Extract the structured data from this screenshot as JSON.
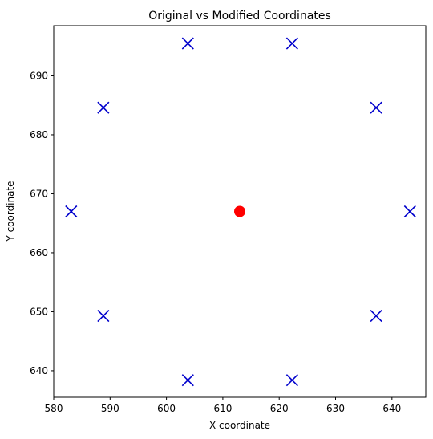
{
  "chart_data": {
    "type": "scatter",
    "title": "Original vs Modified Coordinates",
    "xlabel": "X coordinate",
    "ylabel": "Y coordinate",
    "xlim": [
      580,
      646
    ],
    "ylim": [
      635.5,
      698.5
    ],
    "xticks": [
      580,
      590,
      600,
      610,
      620,
      630,
      640
    ],
    "yticks": [
      640,
      650,
      660,
      670,
      680,
      690
    ],
    "grid": false,
    "series": [
      {
        "marker": "circle",
        "color": "#ff0000",
        "points": [
          {
            "x": 613.0,
            "y": 667.0
          }
        ]
      },
      {
        "marker": "x",
        "color": "#0000cc",
        "points": [
          {
            "x": 643.2,
            "y": 667.0
          },
          {
            "x": 637.2,
            "y": 684.6
          },
          {
            "x": 622.3,
            "y": 695.5
          },
          {
            "x": 603.8,
            "y": 695.5
          },
          {
            "x": 588.8,
            "y": 684.6
          },
          {
            "x": 583.1,
            "y": 667.0
          },
          {
            "x": 588.8,
            "y": 649.3
          },
          {
            "x": 603.8,
            "y": 638.4
          },
          {
            "x": 622.3,
            "y": 638.4
          },
          {
            "x": 637.2,
            "y": 649.3
          }
        ]
      }
    ]
  }
}
